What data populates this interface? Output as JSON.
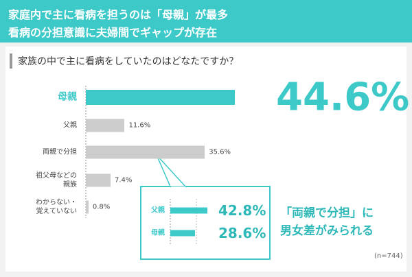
{
  "header": {
    "lines": [
      "家庭内で主に看病を担うのは「母親」が最多",
      "看病の分担意識に夫婦間でギャップが存在"
    ]
  },
  "chart_data": [
    {
      "type": "hbar",
      "subtitle": "家族の中で主に看病をしていたのはどなたですか？",
      "categories": [
        "母親",
        "父親",
        "両親で分担",
        "祖父母などの\n親族",
        "わからない・\n覚えていない"
      ],
      "values": [
        44.6,
        11.6,
        35.6,
        7.4,
        0.8
      ],
      "value_labels": [
        "44.6%",
        "11.6%",
        "35.6%",
        "7.4%",
        "0.8%"
      ],
      "colors": [
        "#3ec9c9",
        "#cccccc",
        "#cccccc",
        "#cccccc",
        "#cccccc"
      ],
      "xlim": [
        0,
        60
      ]
    },
    {
      "type": "hbar",
      "categories": [
        "父親",
        "母親"
      ],
      "values": [
        42.8,
        28.6
      ],
      "value_labels": [
        "42.8%",
        "28.6%"
      ],
      "colors": [
        "#3ec9c9",
        "#3ec9c9"
      ],
      "xlim": [
        0,
        100
      ]
    }
  ],
  "annotation": "「両親で分担」に\n男女差がみられる",
  "note": "(n=744)"
}
